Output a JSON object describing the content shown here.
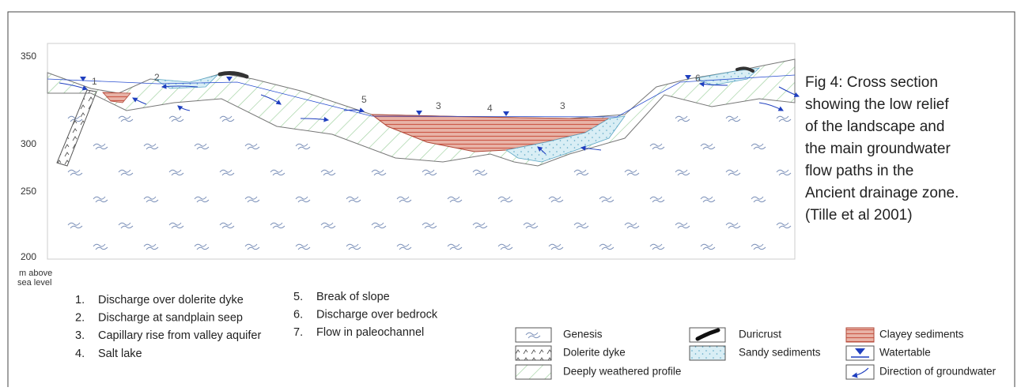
{
  "axis": {
    "ticks": [
      "350",
      "300",
      "250",
      "200"
    ],
    "unit_lines": [
      "m above",
      "sea level"
    ]
  },
  "section_labels": [
    "1",
    "2",
    "5",
    "3",
    "4",
    "3",
    "6"
  ],
  "caption": {
    "lines": [
      "Fig 4: Cross section",
      "showing the low relief",
      "of the landscape and",
      "the main groundwater",
      "flow paths in the",
      "Ancient drainage zone.",
      "(Tille et al 2001)"
    ]
  },
  "notes": [
    {
      "number": "1.",
      "text": "Discharge over dolerite dyke"
    },
    {
      "number": "2.",
      "text": "Discharge at sandplain seep"
    },
    {
      "number": "3.",
      "text": "Capillary rise from valley aquifer"
    },
    {
      "number": "4.",
      "text": "Salt lake"
    },
    {
      "number": "5.",
      "text": "Break of slope"
    },
    {
      "number": "6.",
      "text": "Discharge over bedrock"
    },
    {
      "number": "7.",
      "text": "Flow in paleochannel"
    }
  ],
  "legend": [
    {
      "label": "Genesis"
    },
    {
      "label": "Dolerite dyke"
    },
    {
      "label": "Deeply weathered profile"
    },
    {
      "label": "Duricrust"
    },
    {
      "label": "Sandy sediments"
    },
    {
      "label": "Clayey sediments"
    },
    {
      "label": "Watertable"
    },
    {
      "label": "Direction of groundwater"
    }
  ]
}
